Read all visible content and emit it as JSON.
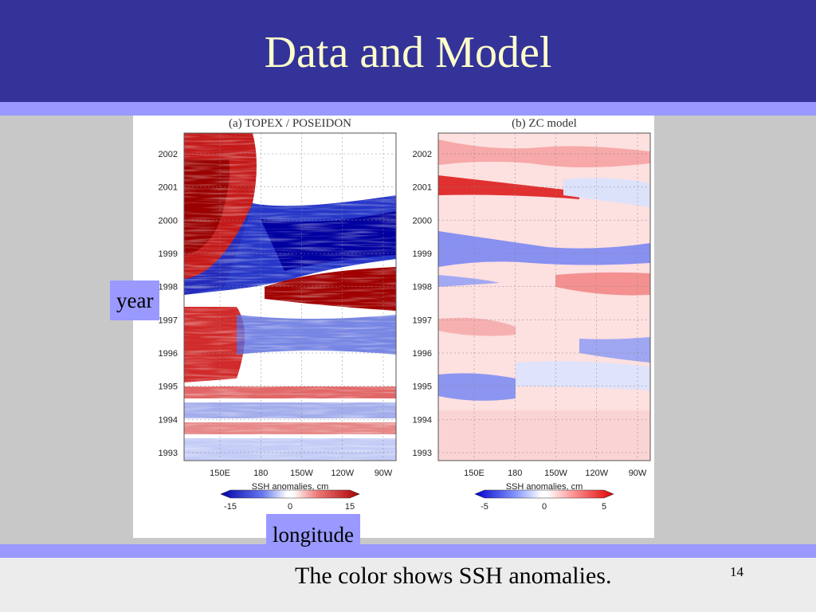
{
  "slide": {
    "title": "Data and Model",
    "year_label": "year",
    "longitude_label": "longitude",
    "caption": "The color shows SSH anomalies.",
    "page_number": "14"
  },
  "colors": {
    "title_bar": "#333399",
    "title_text": "#ffffcc",
    "accent_stripe": "#9999ff",
    "background": "#c8c8c8"
  },
  "figure": {
    "panels": [
      {
        "title": "(a) TOPEX / POSEIDON",
        "years": [
          "1993",
          "1994",
          "1995",
          "1996",
          "1997",
          "1998",
          "1999",
          "2000",
          "2001",
          "2002"
        ],
        "longitudes": [
          "150E",
          "180",
          "150W",
          "120W",
          "90W"
        ],
        "colorbar_label": "SSH anomalies, cm",
        "colorbar_ticks": [
          "-15",
          "0",
          "15"
        ]
      },
      {
        "title": "(b) ZC model",
        "years": [
          "1993",
          "1994",
          "1995",
          "1996",
          "1997",
          "1998",
          "1999",
          "2000",
          "2001",
          "2002"
        ],
        "longitudes": [
          "150E",
          "180",
          "150W",
          "120W",
          "90W"
        ],
        "colorbar_label": "SSH anomalies, cm",
        "colorbar_ticks": [
          "-5",
          "0",
          "5"
        ]
      }
    ]
  }
}
